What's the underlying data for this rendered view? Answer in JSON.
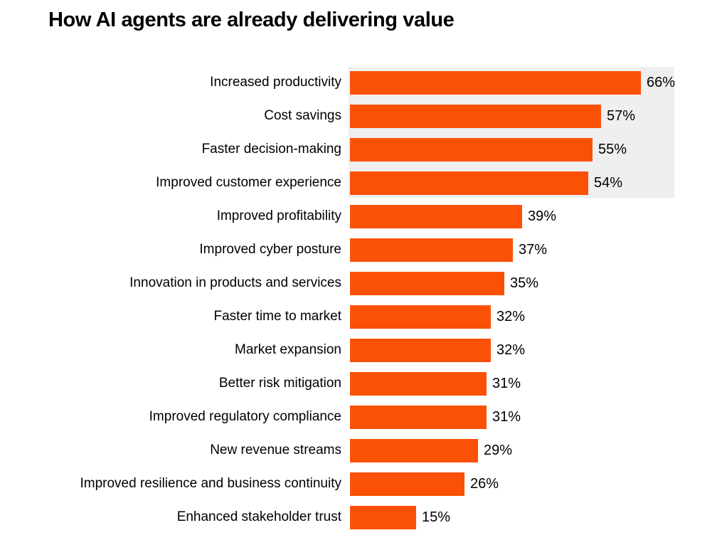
{
  "title": "How AI agents are already delivering value",
  "chart_data": {
    "type": "bar",
    "orientation": "horizontal",
    "title": "How AI agents are already delivering value",
    "xlabel": "",
    "ylabel": "",
    "unit": "%",
    "xlim": [
      0,
      70
    ],
    "grid": false,
    "legend": false,
    "axes_visible": false,
    "categories": [
      "Increased productivity",
      "Cost savings",
      "Faster decision-making",
      "Improved customer experience",
      "Improved profitability",
      "Improved cyber posture",
      "Innovation in products and services",
      "Faster time to market",
      "Market expansion",
      "Better risk mitigation",
      "Improved regulatory compliance",
      "New revenue streams",
      "Improved resilience and business continuity",
      "Enhanced stakeholder trust"
    ],
    "values": [
      66,
      57,
      55,
      54,
      39,
      37,
      35,
      32,
      32,
      31,
      31,
      29,
      26,
      15
    ],
    "value_labels": [
      "66%",
      "57%",
      "55%",
      "54%",
      "39%",
      "37%",
      "35%",
      "32%",
      "32%",
      "31%",
      "31%",
      "29%",
      "26%",
      "15%"
    ],
    "highlight_top_rows": 4,
    "bar_color": "#FB5106",
    "highlight_color": "#EFEFF0"
  },
  "colors": {
    "background": "#FFFFFF",
    "text": "#000000",
    "bar": "#FB5106",
    "highlight_band": "#EFEFF0"
  }
}
